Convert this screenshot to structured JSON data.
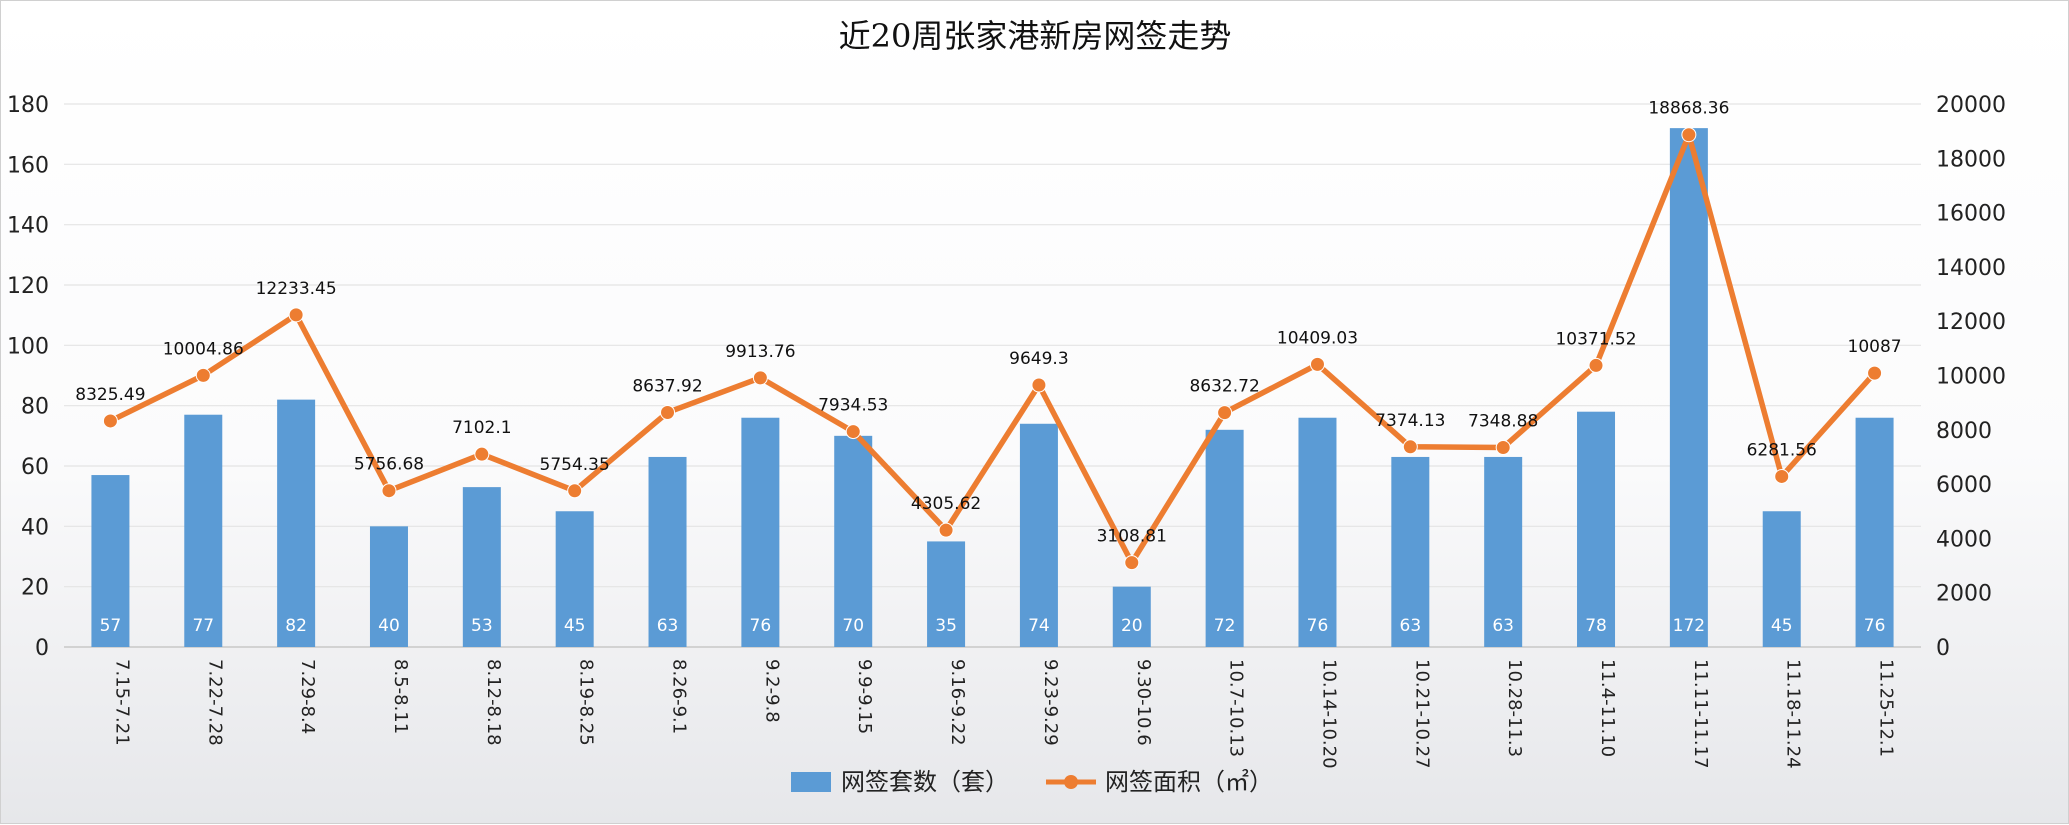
{
  "chart_data": {
    "type": "bar",
    "title": "近20周张家港新房网签走势",
    "categories": [
      "7.15-7.21",
      "7.22-7.28",
      "7.29-8.4",
      "8.5-8.11",
      "8.12-8.18",
      "8.19-8.25",
      "8.26-9.1",
      "9.2-9.8",
      "9.9-9.15",
      "9.16-9.22",
      "9.23-9.29",
      "9.30-10.6",
      "10.7-10.13",
      "10.14-10.20",
      "10.21-10.27",
      "10.28-11.3",
      "11.4-11.10",
      "11.11-11.17",
      "11.18-11.24",
      "11.25-12.1"
    ],
    "series": [
      {
        "name": "网签套数（套）",
        "type": "bar",
        "axis": "left",
        "color": "#5b9bd5",
        "values": [
          57,
          77,
          82,
          40,
          53,
          45,
          63,
          76,
          70,
          35,
          74,
          20,
          72,
          76,
          63,
          63,
          78,
          172,
          45,
          76
        ]
      },
      {
        "name": "网签面积（㎡）",
        "type": "line",
        "axis": "right",
        "color": "#ed7d31",
        "values": [
          8325.49,
          10004.86,
          12233.45,
          5756.68,
          7102.1,
          5754.35,
          8637.92,
          9913.76,
          7934.53,
          4305.62,
          9649.3,
          3108.81,
          8632.72,
          10409.03,
          7374.13,
          7348.88,
          10371.52,
          18868.36,
          6281.56,
          10087
        ]
      }
    ],
    "y_left": {
      "min": 0,
      "max": 180,
      "step": 20,
      "ticks": [
        "0",
        "20",
        "40",
        "60",
        "80",
        "100",
        "120",
        "140",
        "160",
        "180"
      ]
    },
    "y_right": {
      "min": 0,
      "max": 20000,
      "step": 2000,
      "ticks": [
        "0",
        "2000",
        "4000",
        "6000",
        "8000",
        "10000",
        "12000",
        "14000",
        "16000",
        "18000",
        "20000"
      ]
    },
    "bar_labels": [
      "57",
      "77",
      "82",
      "40",
      "53",
      "45",
      "63",
      "76",
      "70",
      "35",
      "74",
      "20",
      "72",
      "76",
      "63",
      "63",
      "78",
      "172",
      "45",
      "76"
    ],
    "line_labels": [
      "8325.49",
      "10004.86",
      "12233.45",
      "5756.68",
      "7102.1",
      "5754.35",
      "8637.92",
      "9913.76",
      "7934.53",
      "4305.62",
      "9649.3",
      "3108.81",
      "8632.72",
      "10409.03",
      "7374.13",
      "7348.88",
      "10371.52",
      "18868.36",
      "6281.56",
      "10087"
    ],
    "grid": true,
    "legend_position": "bottom"
  }
}
